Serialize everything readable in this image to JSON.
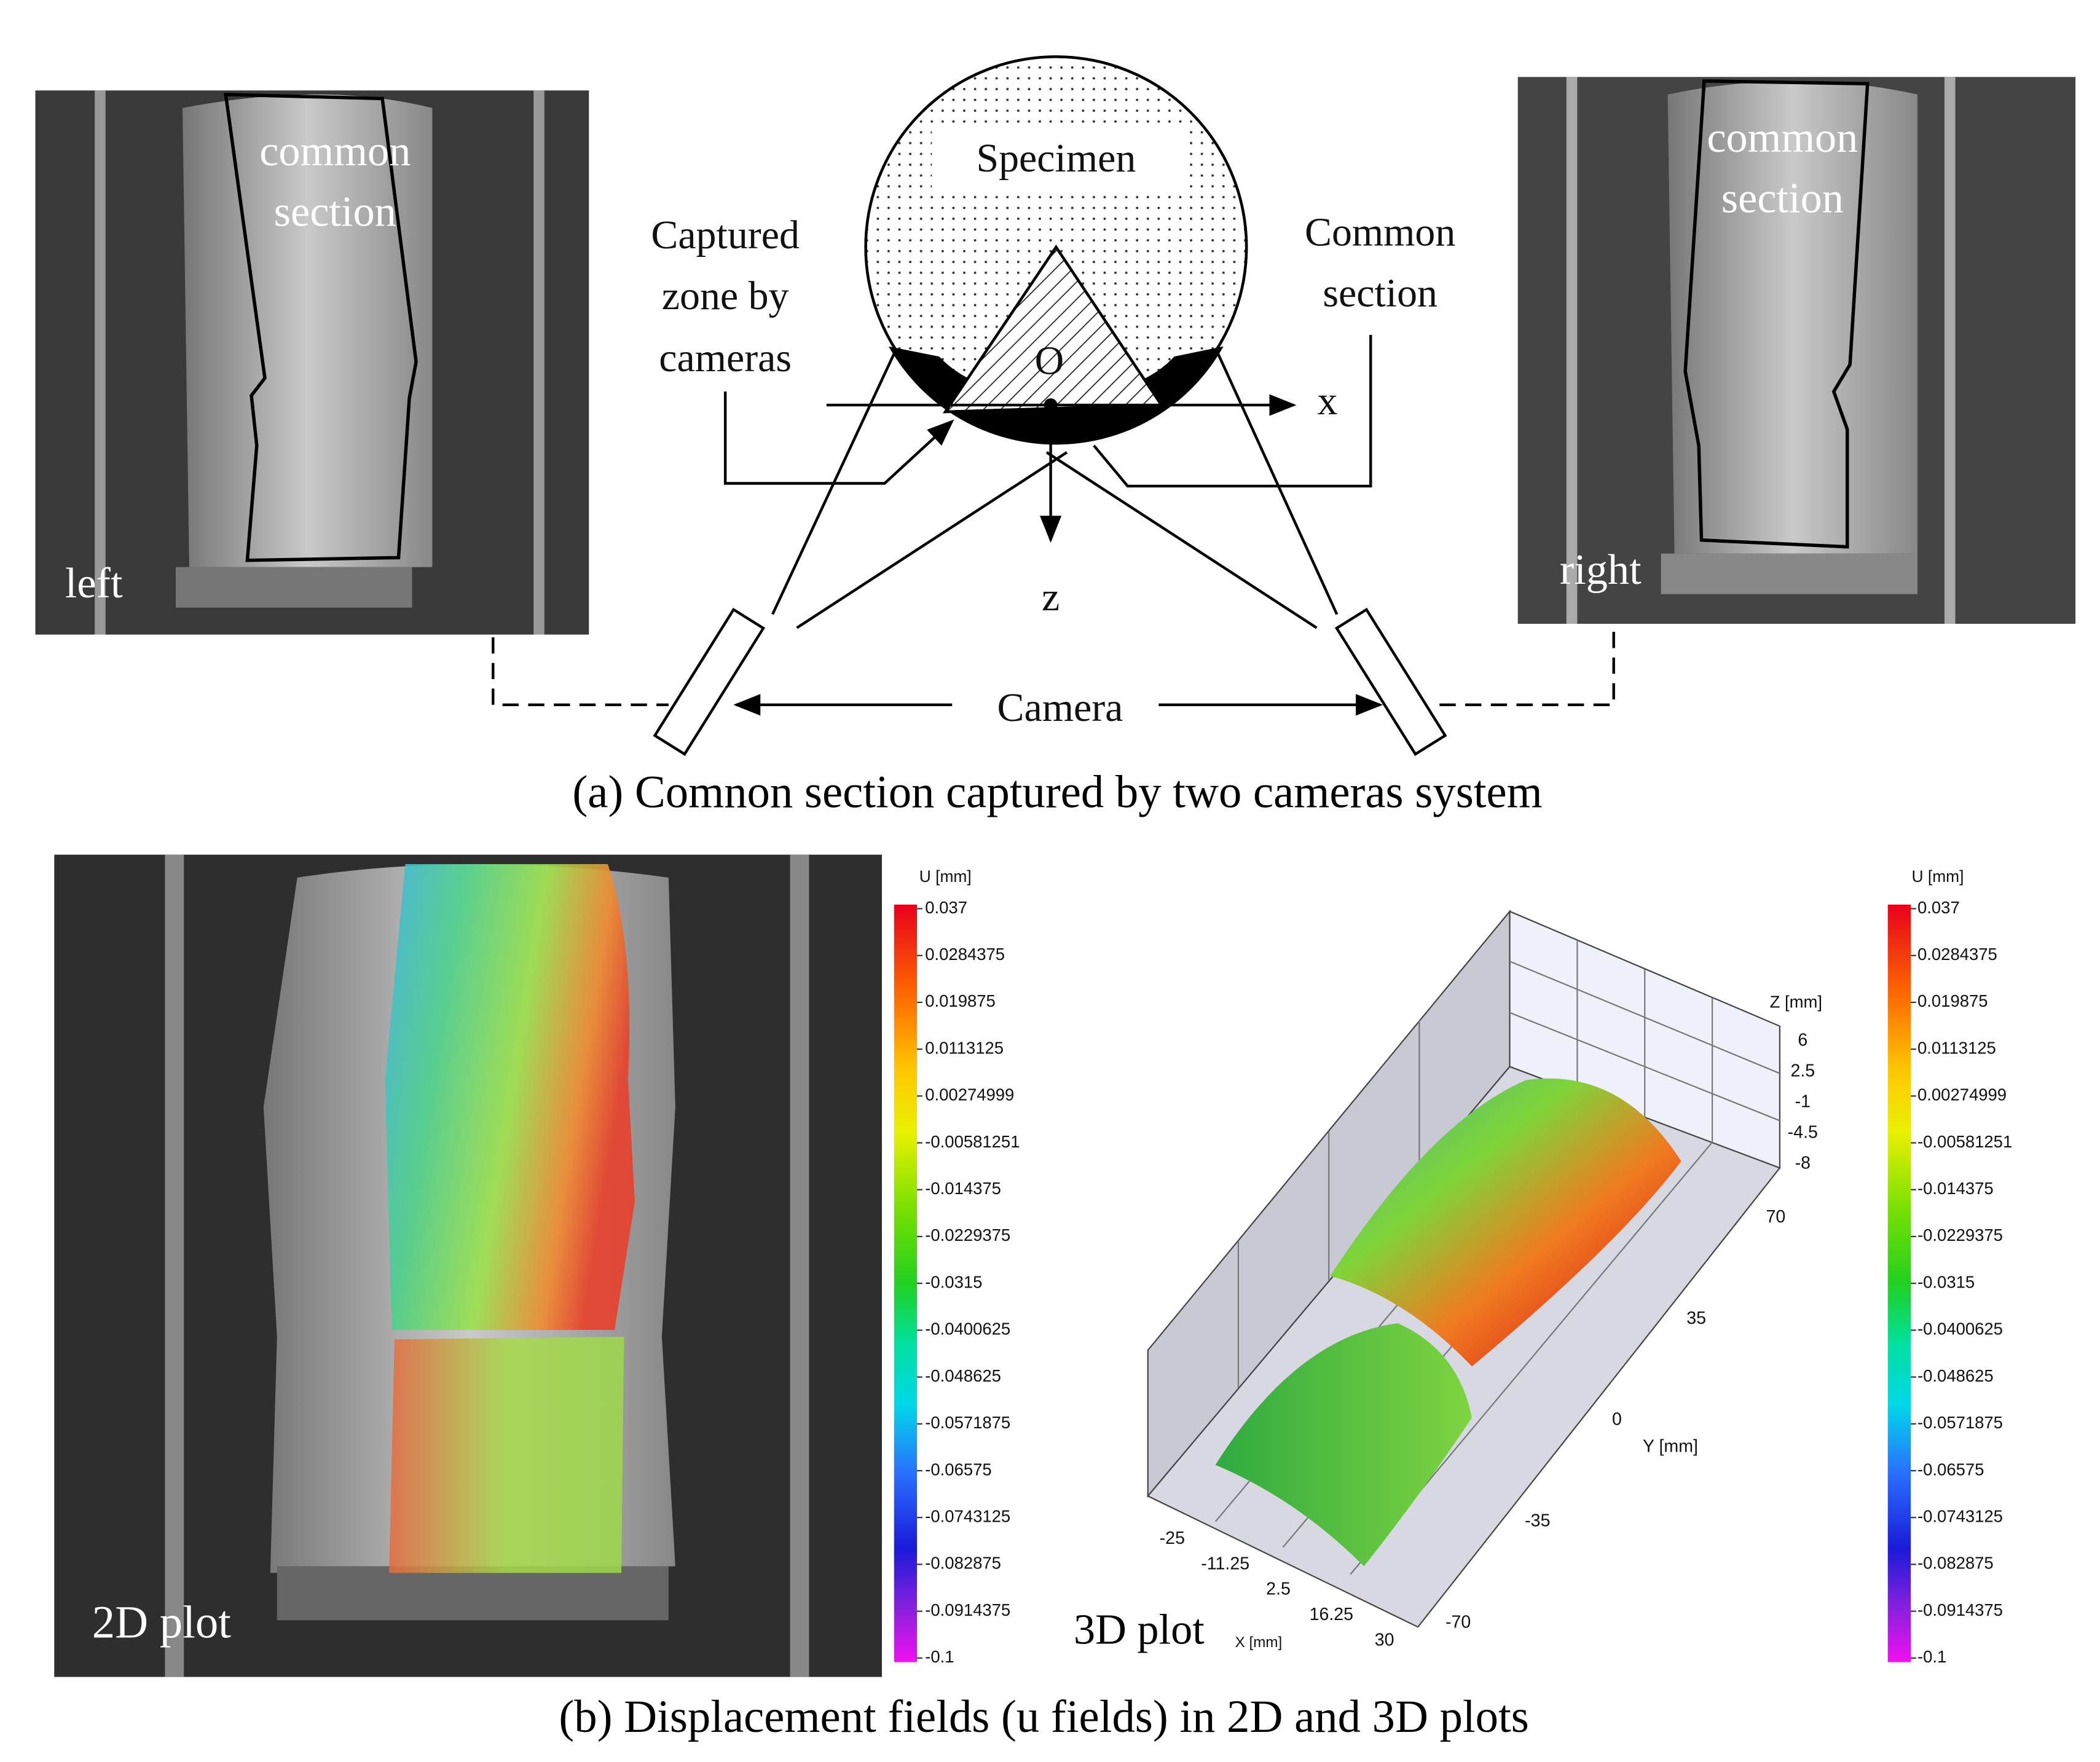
{
  "panel_a": {
    "left_photo": {
      "overlay_label": [
        "common",
        "section"
      ],
      "label": "left"
    },
    "right_photo": {
      "overlay_label": [
        "common",
        "section"
      ],
      "label": "right"
    },
    "diagram": {
      "specimen": "Specimen",
      "captured_zone": [
        "Captured",
        "zone by",
        "cameras"
      ],
      "common_section": [
        "Common",
        "section"
      ],
      "origin": "O",
      "x_axis": "x",
      "z_axis": "z",
      "camera": "Camera"
    },
    "caption": "(a) Comnon section captured by two cameras system"
  },
  "panel_b": {
    "plot_2d": {
      "label": "2D plot",
      "colorbar": {
        "title": "U [mm]",
        "ticks": [
          "0.037",
          "0.0284375",
          "0.019875",
          "0.0113125",
          "0.00274999",
          "-0.00581251",
          "-0.014375",
          "-0.0229375",
          "-0.0315",
          "-0.0400625",
          "-0.048625",
          "-0.0571875",
          "-0.06575",
          "-0.0743125",
          "-0.082875",
          "-0.0914375",
          "-0.1"
        ]
      }
    },
    "plot_3d": {
      "label": "3D plot",
      "colorbar": {
        "title": "U [mm]",
        "ticks": [
          "0.037",
          "0.0284375",
          "0.019875",
          "0.0113125",
          "0.00274999",
          "-0.00581251",
          "-0.014375",
          "-0.0229375",
          "-0.0315",
          "-0.0400625",
          "-0.048625",
          "-0.0571875",
          "-0.06575",
          "-0.0743125",
          "-0.082875",
          "-0.0914375",
          "-0.1"
        ]
      },
      "z_axis": {
        "title": "Z [mm]",
        "ticks": [
          "6",
          "2.5",
          "-1",
          "-4.5",
          "-8"
        ]
      },
      "y_axis": {
        "title": "Y [mm]",
        "ticks": [
          "70",
          "35",
          "0",
          "-35",
          "-70"
        ]
      },
      "x_axis": {
        "title": "X [mm]",
        "ticks": [
          "-25",
          "-11.25",
          "2.5",
          "16.25",
          "30"
        ]
      }
    },
    "caption": "(b) Displacement fields (u fields) in 2D and 3D plots"
  }
}
